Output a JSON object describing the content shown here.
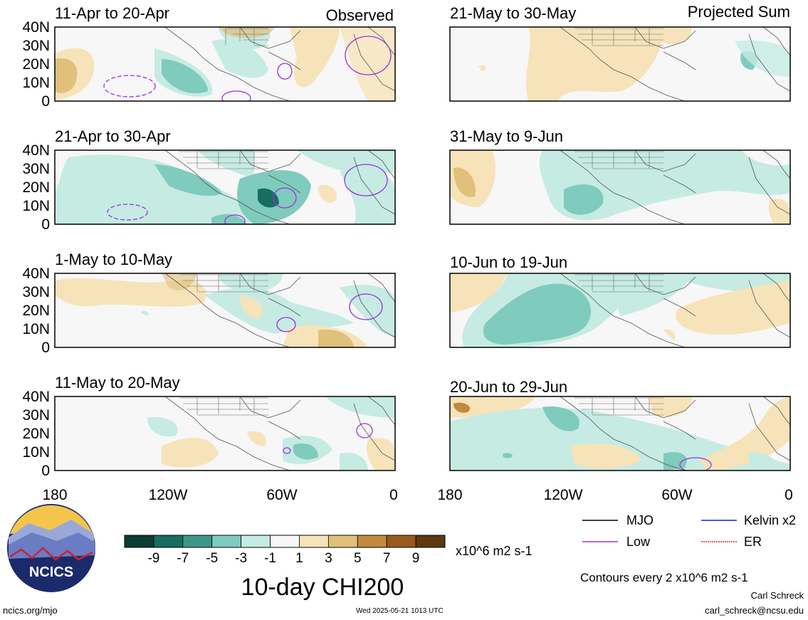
{
  "figure": {
    "title": "10-day CHI200",
    "left_column_label": "Observed",
    "right_column_label": "Projected Sum"
  },
  "panels": [
    {
      "id": "p1",
      "date_range": "11-Apr to 20-Apr"
    },
    {
      "id": "p2",
      "date_range": "21-Apr to 30-Apr"
    },
    {
      "id": "p3",
      "date_range": "1-May to 10-May"
    },
    {
      "id": "p4",
      "date_range": "11-May to 20-May"
    },
    {
      "id": "p5",
      "date_range": "21-May to 30-May"
    },
    {
      "id": "p6",
      "date_range": "31-May to 9-Jun"
    },
    {
      "id": "p7",
      "date_range": "10-Jun to 19-Jun"
    },
    {
      "id": "p8",
      "date_range": "20-Jun to 29-Jun"
    }
  ],
  "axes": {
    "lat_ticks": [
      "40N",
      "30N",
      "20N",
      "10N",
      "0"
    ],
    "lon_ticks": [
      "180",
      "120W",
      "60W",
      "0"
    ]
  },
  "colorbar": {
    "tick_labels": [
      "-9",
      "-7",
      "-5",
      "-3",
      "-1",
      "1",
      "3",
      "5",
      "7",
      "9"
    ],
    "units": "x10^6 m2 s-1",
    "colors": [
      "#0b3d33",
      "#186c60",
      "#3b9888",
      "#7fcbbd",
      "#c6ebe3",
      "#f7f7f7",
      "#f6e3b9",
      "#e0c07a",
      "#c28a3d",
      "#9a5a1b",
      "#5c3710"
    ]
  },
  "legend": {
    "items": [
      {
        "label": "MJO",
        "color": "#000000"
      },
      {
        "label": "Kelvin x2",
        "color": "#1a1ad4"
      },
      {
        "label": "Low",
        "color": "#9b30e0"
      },
      {
        "label": "ER",
        "color": "#e02020"
      }
    ],
    "contour_note": "Contours every 2 x10^6 m2 s-1"
  },
  "logo": {
    "text": "NCICS"
  },
  "footer": {
    "url": "ncics.org/mjo",
    "timestamp": "Wed 2025-05-21 1013 UTC",
    "author": "Carl Schreck",
    "email": "carl_schreck@ncsu.edu"
  }
}
